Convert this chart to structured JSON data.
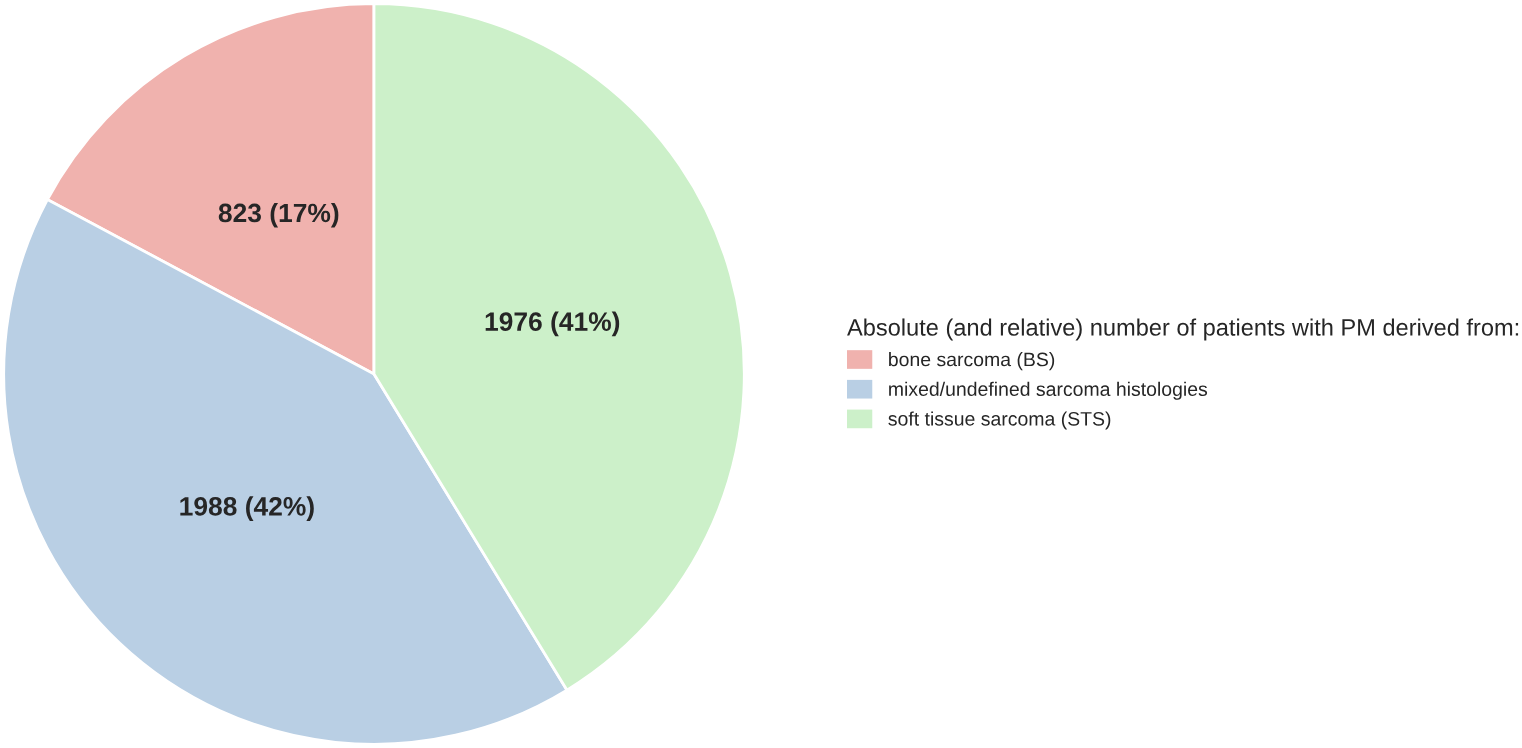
{
  "chart_data": {
    "type": "pie",
    "categories": [
      "bone sarcoma (BS)",
      "mixed/undefined sarcoma histologies",
      "soft tissue sarcoma (STS)"
    ],
    "values": [
      823,
      1988,
      1976
    ],
    "value_labels": [
      "823 (17%)",
      "1988 (42%)",
      "1976 (41%)"
    ],
    "colors": [
      "#f0b2ae",
      "#b9cfe4",
      "#ccf0c9"
    ],
    "legend_title": "Absolute (and relative) number of patients with PM derived from:",
    "legend": "right"
  }
}
